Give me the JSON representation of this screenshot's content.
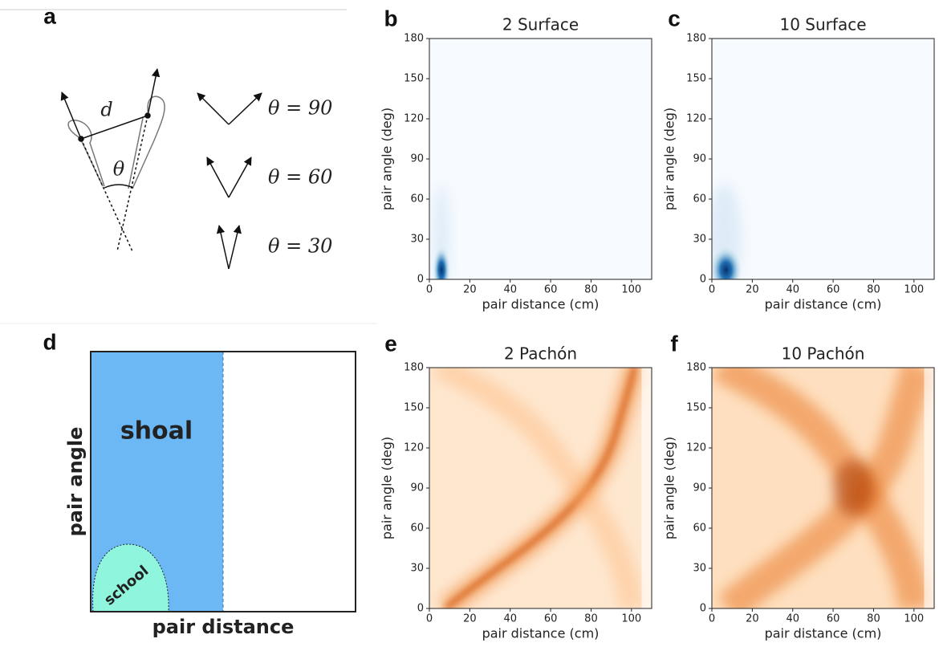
{
  "panel_labels": [
    "a",
    "b",
    "c",
    "d",
    "e",
    "f"
  ],
  "diagram_a": {
    "distance_label": "d",
    "angle_label": "θ",
    "examples": [
      "θ = 90",
      "θ = 60",
      "θ = 30"
    ]
  },
  "diagram_d": {
    "regions": [
      "shoal",
      "school"
    ],
    "y_label": "pair angle",
    "x_label": "pair distance"
  },
  "chart_data": [
    {
      "type": "heatmap",
      "title": "2 Surface",
      "x_label": "pair distance (cm)",
      "y_label": "pair angle (deg)",
      "xlim": [
        0,
        110
      ],
      "ylim": [
        0,
        180
      ],
      "xticks": [
        0,
        20,
        40,
        60,
        80,
        100
      ],
      "yticks": [
        0,
        30,
        60,
        90,
        120,
        150,
        180
      ],
      "colormap": "Blues"
    },
    {
      "type": "heatmap",
      "title": "10 Surface",
      "x_label": "pair distance (cm)",
      "y_label": "pair angle (deg)",
      "xlim": [
        0,
        110
      ],
      "ylim": [
        0,
        180
      ],
      "xticks": [
        0,
        20,
        40,
        60,
        80,
        100
      ],
      "yticks": [
        0,
        30,
        60,
        90,
        120,
        150,
        180
      ],
      "colormap": "Blues"
    },
    {
      "type": "heatmap",
      "title": "2 Pachón",
      "x_label": "pair distance (cm)",
      "y_label": "pair angle (deg)",
      "xlim": [
        0,
        110
      ],
      "ylim": [
        0,
        180
      ],
      "xticks": [
        0,
        20,
        40,
        60,
        80,
        100
      ],
      "yticks": [
        0,
        30,
        60,
        90,
        120,
        150,
        180
      ],
      "colormap": "Oranges"
    },
    {
      "type": "heatmap",
      "title": "10 Pachón",
      "x_label": "pair distance (cm)",
      "y_label": "pair angle (deg)",
      "xlim": [
        0,
        110
      ],
      "ylim": [
        0,
        180
      ],
      "xticks": [
        0,
        20,
        40,
        60,
        80,
        100
      ],
      "yticks": [
        0,
        30,
        60,
        90,
        120,
        150,
        180
      ],
      "colormap": "Oranges"
    }
  ]
}
